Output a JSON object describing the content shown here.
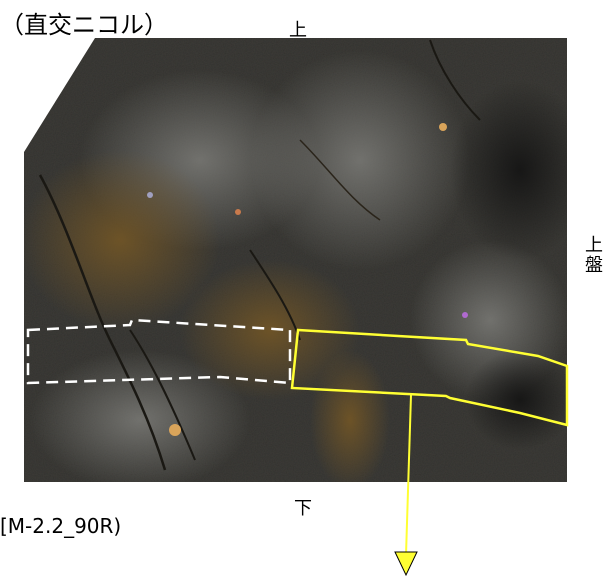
{
  "labels": {
    "title": "（直交ニコル）",
    "top": "上",
    "right": "上\n盤",
    "bottom": "下",
    "sample_id": "[M-2.2_90R)"
  },
  "colors": {
    "dashed_outline": "#ffffff",
    "highlight_outline": "#ffff33",
    "arrow": "#ffff33",
    "rock_base": "#3c3b37"
  }
}
